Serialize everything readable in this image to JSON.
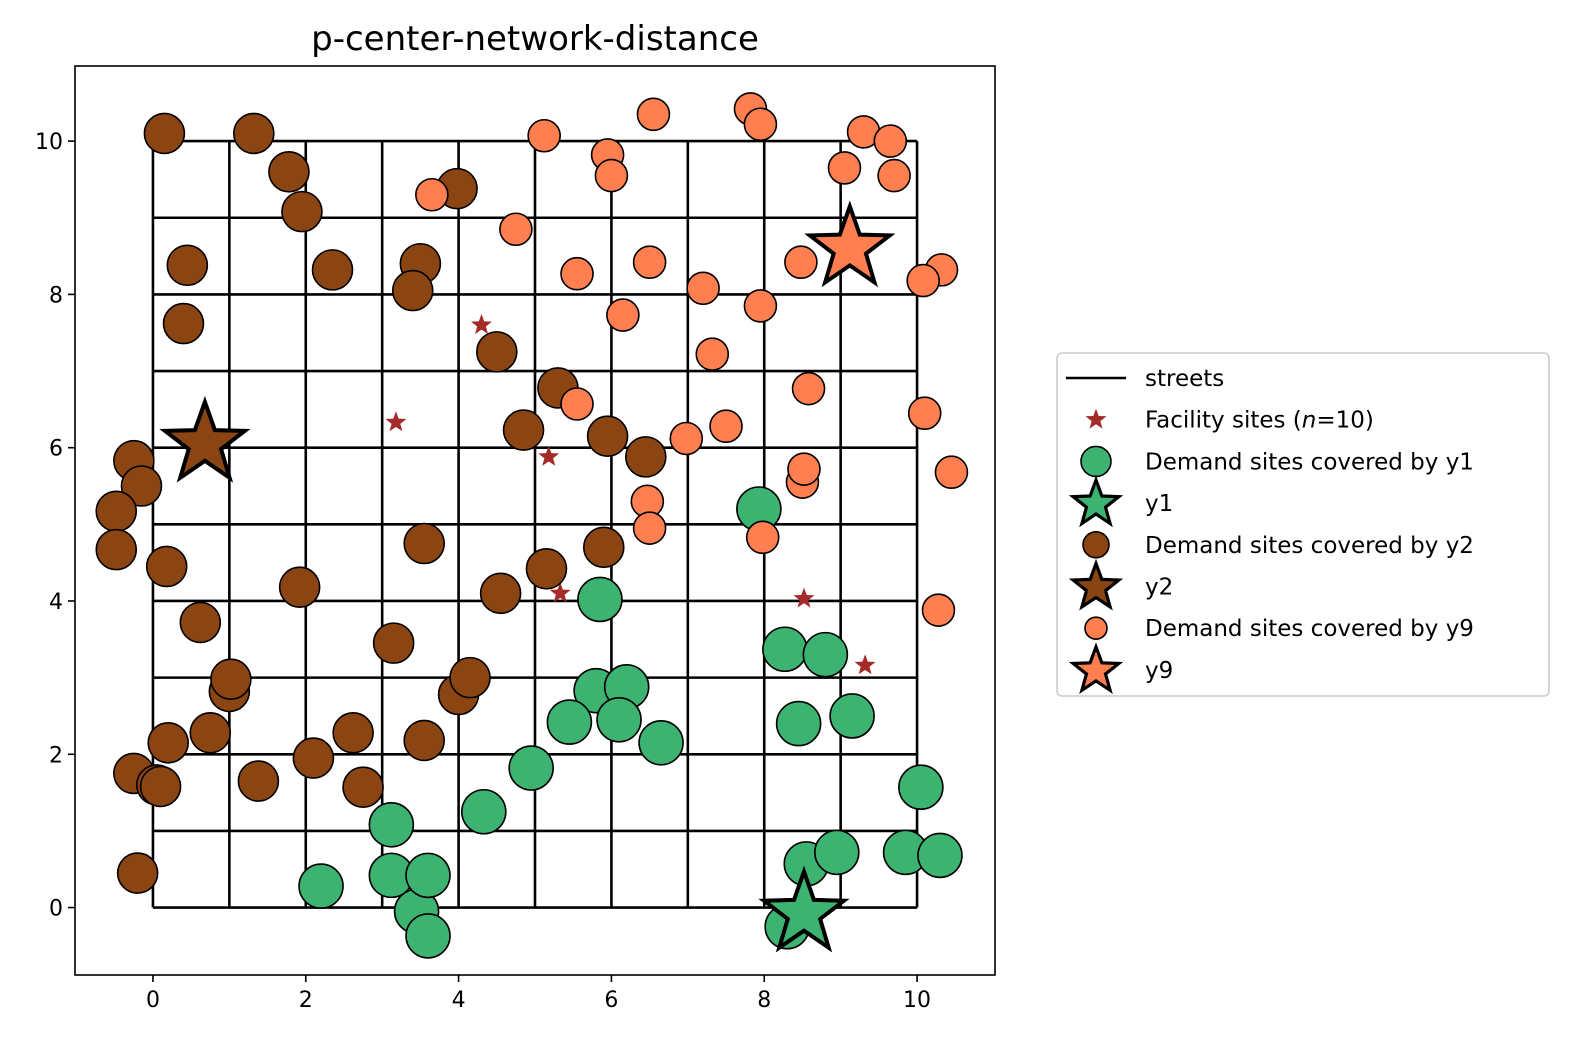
{
  "chart_data": {
    "type": "scatter",
    "title": "p-center-network-distance",
    "xlabel": "",
    "ylabel": "",
    "xlim": [
      -1.02,
      11.02
    ],
    "ylim": [
      -0.88,
      10.98
    ],
    "xticks": [
      0,
      2,
      4,
      6,
      8,
      10
    ],
    "yticks": [
      0,
      2,
      4,
      6,
      8,
      10
    ],
    "grid": false,
    "legend_position": "outside-right",
    "streets": {
      "name": "streets",
      "color": "#000000",
      "lines": [
        0,
        1,
        2,
        3,
        4,
        5,
        6,
        7,
        8,
        9,
        10
      ]
    },
    "facility_sites": {
      "name": "Facility sites (n=10)",
      "color": "#a52a2a",
      "points": [
        [
          6.6,
          10.38
        ],
        [
          4.3,
          7.6
        ],
        [
          3.18,
          6.33
        ],
        [
          5.18,
          5.88
        ],
        [
          5.33,
          4.1
        ],
        [
          8.52,
          4.03
        ],
        [
          9.32,
          3.16
        ]
      ]
    },
    "series": [
      {
        "name": "Demand sites covered by y1",
        "facility_name": "y1",
        "color": "#3cb371",
        "facility": [
          8.52,
          -0.08
        ],
        "points": [
          [
            7.93,
            5.2
          ],
          [
            5.85,
            4.02
          ],
          [
            8.27,
            3.37
          ],
          [
            8.8,
            3.3
          ],
          [
            5.8,
            2.83
          ],
          [
            6.2,
            2.88
          ],
          [
            6.1,
            2.45
          ],
          [
            5.45,
            2.42
          ],
          [
            8.45,
            2.4
          ],
          [
            9.15,
            2.5
          ],
          [
            6.65,
            2.15
          ],
          [
            4.95,
            1.82
          ],
          [
            10.05,
            1.57
          ],
          [
            4.33,
            1.25
          ],
          [
            3.12,
            1.08
          ],
          [
            3.12,
            0.42
          ],
          [
            3.45,
            -0.05
          ],
          [
            3.6,
            0.42
          ],
          [
            2.2,
            0.28
          ],
          [
            3.6,
            -0.37
          ],
          [
            8.55,
            0.57
          ],
          [
            8.95,
            0.72
          ],
          [
            9.85,
            0.72
          ],
          [
            10.3,
            0.68
          ],
          [
            8.3,
            -0.25
          ]
        ]
      },
      {
        "name": "Demand sites covered by y2",
        "facility_name": "y2",
        "color": "#8b4513",
        "facility": [
          0.68,
          6.05
        ],
        "points": [
          [
            0.15,
            10.1
          ],
          [
            1.32,
            10.1
          ],
          [
            1.78,
            9.6
          ],
          [
            1.95,
            9.08
          ],
          [
            3.98,
            9.38
          ],
          [
            0.45,
            8.38
          ],
          [
            2.35,
            8.32
          ],
          [
            3.5,
            8.4
          ],
          [
            3.4,
            8.05
          ],
          [
            0.4,
            7.62
          ],
          [
            4.5,
            7.25
          ],
          [
            5.3,
            6.78
          ],
          [
            4.85,
            6.23
          ],
          [
            5.95,
            6.15
          ],
          [
            6.45,
            5.88
          ],
          [
            -0.25,
            5.83
          ],
          [
            -0.15,
            5.5
          ],
          [
            -0.48,
            5.17
          ],
          [
            -0.48,
            4.67
          ],
          [
            0.18,
            4.45
          ],
          [
            3.55,
            4.75
          ],
          [
            5.9,
            4.7
          ],
          [
            5.15,
            4.42
          ],
          [
            1.92,
            4.18
          ],
          [
            4.55,
            4.1
          ],
          [
            0.62,
            3.72
          ],
          [
            3.15,
            3.45
          ],
          [
            1.0,
            2.82
          ],
          [
            1.02,
            2.98
          ],
          [
            4.0,
            2.78
          ],
          [
            4.15,
            3.0
          ],
          [
            0.75,
            2.28
          ],
          [
            0.2,
            2.15
          ],
          [
            2.62,
            2.28
          ],
          [
            3.55,
            2.18
          ],
          [
            2.1,
            1.95
          ],
          [
            -0.25,
            1.75
          ],
          [
            0.05,
            1.6
          ],
          [
            0.1,
            1.58
          ],
          [
            1.38,
            1.65
          ],
          [
            2.75,
            1.57
          ],
          [
            -0.2,
            0.45
          ]
        ]
      },
      {
        "name": "Demand sites covered by y9",
        "facility_name": "y9",
        "color": "#ff7f50",
        "facility": [
          9.12,
          8.6
        ],
        "points": [
          [
            6.55,
            10.35
          ],
          [
            7.82,
            10.42
          ],
          [
            7.95,
            10.22
          ],
          [
            5.12,
            10.07
          ],
          [
            9.3,
            10.12
          ],
          [
            9.65,
            10.0
          ],
          [
            5.95,
            9.82
          ],
          [
            6.0,
            9.55
          ],
          [
            9.05,
            9.65
          ],
          [
            9.7,
            9.55
          ],
          [
            3.65,
            9.3
          ],
          [
            4.75,
            8.85
          ],
          [
            6.5,
            8.42
          ],
          [
            8.48,
            8.42
          ],
          [
            10.32,
            8.32
          ],
          [
            5.55,
            8.27
          ],
          [
            7.2,
            8.08
          ],
          [
            10.08,
            8.18
          ],
          [
            7.95,
            7.85
          ],
          [
            6.15,
            7.73
          ],
          [
            7.32,
            7.22
          ],
          [
            8.58,
            6.77
          ],
          [
            5.55,
            6.57
          ],
          [
            10.1,
            6.45
          ],
          [
            6.98,
            6.12
          ],
          [
            7.5,
            6.28
          ],
          [
            8.5,
            5.55
          ],
          [
            8.52,
            5.72
          ],
          [
            10.45,
            5.68
          ],
          [
            6.47,
            5.3
          ],
          [
            6.5,
            4.95
          ],
          [
            7.98,
            4.83
          ],
          [
            10.28,
            3.88
          ]
        ]
      }
    ]
  }
}
